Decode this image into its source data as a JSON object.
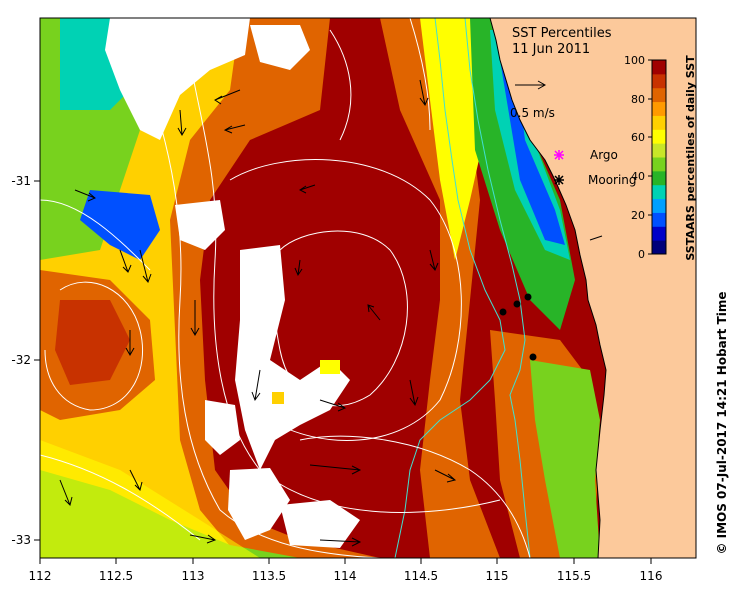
{
  "map": {
    "title": "SST Percentiles",
    "date": "11 Jun 2011",
    "velocity_scale_label": "0.5 m/s",
    "x_ticks": [
      "112",
      "112.5",
      "113",
      "113.5",
      "114",
      "114.5",
      "115",
      "115.5",
      "116"
    ],
    "y_ticks": [
      "-31",
      "-32",
      "-33"
    ],
    "lon_range": [
      112,
      116.3
    ],
    "lat_range": [
      -33.1,
      -30.1
    ],
    "legend": {
      "argo_label": "Argo",
      "mooring_label": "Mooring"
    },
    "colorbar": {
      "label": "SSTAARS percentiles of daily SST",
      "ticks": [
        "0",
        "20",
        "40",
        "60",
        "80",
        "100"
      ],
      "colors": [
        "#00007a",
        "#0000c8",
        "#0050ff",
        "#00a0ff",
        "#00d2b4",
        "#28b428",
        "#78d21e",
        "#c8e628",
        "#ffff00",
        "#ffd000",
        "#ff9a00",
        "#e06400",
        "#c83200",
        "#a00000"
      ]
    },
    "credit": "© IMOS 07-Jul-2017 14:21 Hobart Time",
    "colors": {
      "land": "#fcc99b",
      "ocean_extreme": "#a00000",
      "cloud": "#ffffff"
    }
  }
}
